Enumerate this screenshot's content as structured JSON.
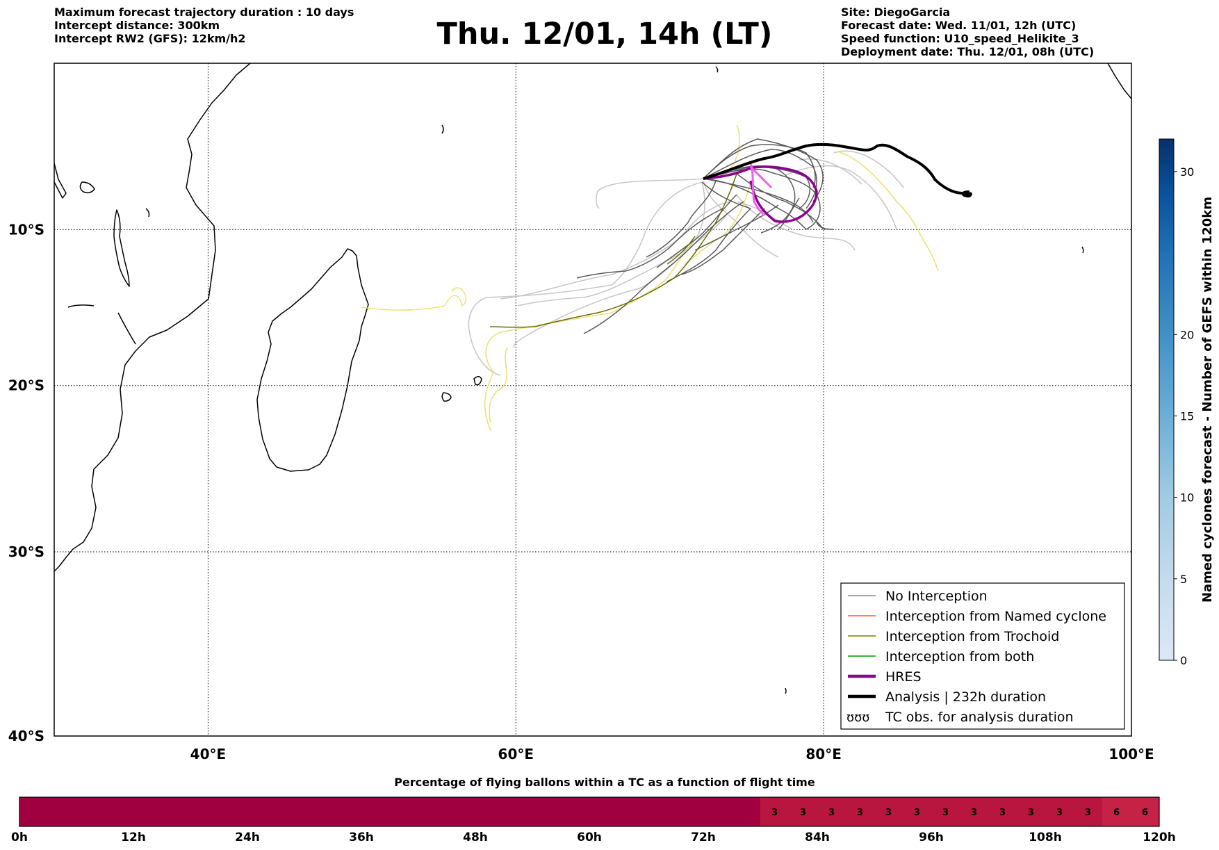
{
  "header": {
    "left_lines": [
      "Maximum forecast trajectory duration : 10 days",
      "Intercept distance: 300km",
      "Intercept RW2 (GFS):  12km/h2"
    ],
    "title": "Thu. 12/01, 14h (LT)",
    "right_lines": [
      "Site: DiegoGarcia",
      "Forecast date: Wed. 11/01, 12h (UTC)",
      "Speed function: U10_speed_Helikite_3",
      "Deployment date: Thu. 12/01, 08h (UTC)"
    ]
  },
  "map": {
    "lon_range": [
      30,
      100
    ],
    "lat_range": [
      -40,
      1
    ],
    "lon_ticks": [
      {
        "value": 40,
        "label": "40°E"
      },
      {
        "value": 60,
        "label": "60°E"
      },
      {
        "value": 80,
        "label": "80°E"
      },
      {
        "value": 100,
        "label": "100°E"
      }
    ],
    "lat_ticks": [
      {
        "value": -10,
        "label": "10°S"
      },
      {
        "value": -20,
        "label": "20°S"
      },
      {
        "value": -30,
        "label": "30°S"
      },
      {
        "value": -40,
        "label": "40°S"
      }
    ],
    "grid": true,
    "colors": {
      "no_interception": "#555555",
      "no_interception_light": "#c8c8c8",
      "named_cyclone": "#ff5a1e",
      "trochoid": "#6b6b00",
      "trochoid_light": "#ece27a",
      "both": "#009a00",
      "hres": "#8e008e",
      "hres_light": "#ee60ee",
      "analysis": "#000000"
    },
    "legend": {
      "placement": "lower-right",
      "items": [
        {
          "label": "No Interception",
          "color": "#888888",
          "style": "thin"
        },
        {
          "label": "Interception from Named cyclone",
          "color": "#ff5a1e",
          "style": "thin"
        },
        {
          "label": "Interception from Trochoid",
          "color": "#7a7a00",
          "style": "thin"
        },
        {
          "label": "Interception from both",
          "color": "#009a00",
          "style": "thin"
        },
        {
          "label": "HRES",
          "color": "#8e008e",
          "style": "thick"
        },
        {
          "label": "Analysis | 232h duration",
          "color": "#000000",
          "style": "thick"
        },
        {
          "label": "TC obs. for analysis duration",
          "color": "#000000",
          "style": "symbol"
        }
      ]
    }
  },
  "colorbar_right": {
    "label": "Named cyclones forecast - Number of GEFS within 120km",
    "range": [
      0,
      32
    ],
    "ticks": [
      0,
      5,
      10,
      15,
      20,
      30
    ],
    "colors": [
      "#dbe8f6",
      "#c6dbef",
      "#9ecae1",
      "#6baed6",
      "#4292c6",
      "#2171b5",
      "#08519c",
      "#08306b"
    ]
  },
  "bottom_bar": {
    "title": "Percentage of flying ballons within a TC as a function of flight time",
    "hours_total": 120,
    "tick_labels": [
      "0h",
      "12h",
      "24h",
      "36h",
      "48h",
      "60h",
      "72h",
      "84h",
      "96h",
      "108h",
      "120h"
    ],
    "cells": [
      {
        "start": 0,
        "end": 78,
        "value": "",
        "color": "#a0003f"
      },
      {
        "start": 78,
        "end": 81,
        "value": "3",
        "color": "#b8153f"
      },
      {
        "start": 81,
        "end": 84,
        "value": "3",
        "color": "#b8153f"
      },
      {
        "start": 84,
        "end": 87,
        "value": "3",
        "color": "#b8153f"
      },
      {
        "start": 87,
        "end": 90,
        "value": "3",
        "color": "#b8153f"
      },
      {
        "start": 90,
        "end": 93,
        "value": "3",
        "color": "#b8153f"
      },
      {
        "start": 93,
        "end": 96,
        "value": "3",
        "color": "#b8153f"
      },
      {
        "start": 96,
        "end": 99,
        "value": "3",
        "color": "#b8153f"
      },
      {
        "start": 99,
        "end": 102,
        "value": "3",
        "color": "#b8153f"
      },
      {
        "start": 102,
        "end": 105,
        "value": "3",
        "color": "#b8153f"
      },
      {
        "start": 105,
        "end": 108,
        "value": "3",
        "color": "#b8153f"
      },
      {
        "start": 108,
        "end": 111,
        "value": "3",
        "color": "#b8153f"
      },
      {
        "start": 111,
        "end": 114,
        "value": "3",
        "color": "#b8153f"
      },
      {
        "start": 114,
        "end": 117,
        "value": "6",
        "color": "#c52245"
      },
      {
        "start": 117,
        "end": 120,
        "value": "6",
        "color": "#c52245"
      }
    ]
  }
}
